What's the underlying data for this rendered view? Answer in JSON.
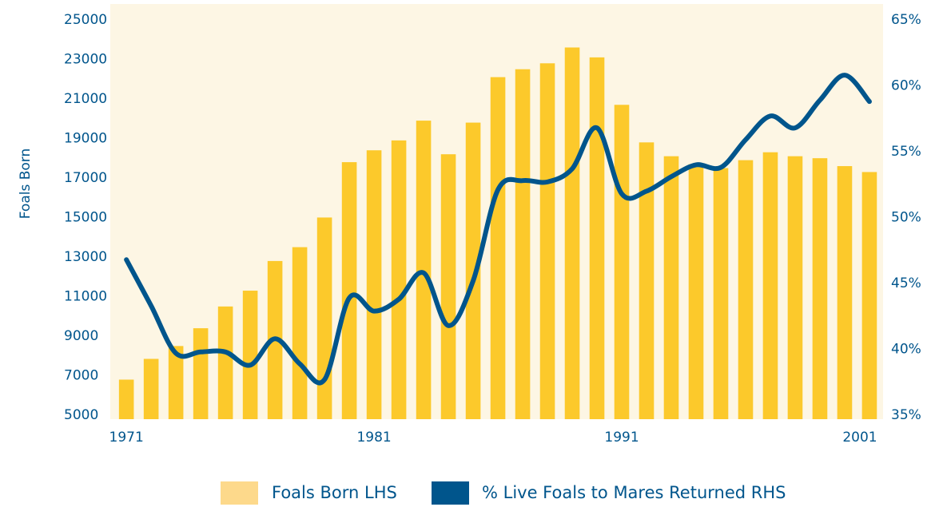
{
  "chart_data": {
    "type": "bar",
    "ylabel": "Foals Born",
    "x": [
      1971,
      1972,
      1973,
      1974,
      1975,
      1976,
      1977,
      1978,
      1979,
      1980,
      1981,
      1982,
      1983,
      1984,
      1985,
      1986,
      1987,
      1988,
      1989,
      1990,
      1991,
      1992,
      1993,
      1994,
      1995,
      1996,
      1997,
      1998,
      1999,
      2000,
      2001
    ],
    "xlim": [
      1970.35,
      2001.55
    ],
    "xticks": [
      1971,
      1981,
      1991,
      2001
    ],
    "ylim": [
      4800,
      25800
    ],
    "yticks": [
      5000,
      7000,
      9000,
      11000,
      13000,
      15000,
      17000,
      19000,
      21000,
      23000,
      25000
    ],
    "y2lim": [
      34.7,
      66.2
    ],
    "y2ticks": [
      {
        "value": 35,
        "label": "35%"
      },
      {
        "value": 40,
        "label": "40%"
      },
      {
        "value": 45,
        "label": "45%"
      },
      {
        "value": 50,
        "label": "50%"
      },
      {
        "value": 55,
        "label": "55%"
      },
      {
        "value": 60,
        "label": "60%"
      },
      {
        "value": 65,
        "label": "65%"
      }
    ],
    "plot_background": "#fdf6e4",
    "series": [
      {
        "name": "Foals Born LHS",
        "type": "bar",
        "color": "#fcc92b",
        "legend_color": "#fdd98b",
        "values": [
          6800,
          7850,
          8500,
          9400,
          10500,
          11300,
          12800,
          13500,
          15000,
          17800,
          18400,
          18900,
          19900,
          18200,
          19800,
          22100,
          22500,
          22800,
          23600,
          23100,
          20700,
          18800,
          18100,
          17700,
          17500,
          17900,
          18300,
          18100,
          18000,
          17600,
          17300
        ]
      },
      {
        "name": "% Live Foals to Mares Returned RHS",
        "type": "line",
        "axis": "y2",
        "color": "#00558c",
        "values": [
          46.8,
          43.3,
          39.7,
          39.8,
          39.8,
          38.8,
          40.8,
          38.9,
          37.7,
          43.9,
          42.9,
          43.8,
          45.8,
          41.8,
          45.2,
          52.1,
          52.8,
          52.7,
          53.7,
          56.8,
          51.8,
          52.0,
          53.1,
          54.0,
          53.8,
          55.9,
          57.7,
          56.8,
          58.9,
          60.8,
          58.8
        ]
      }
    ]
  }
}
